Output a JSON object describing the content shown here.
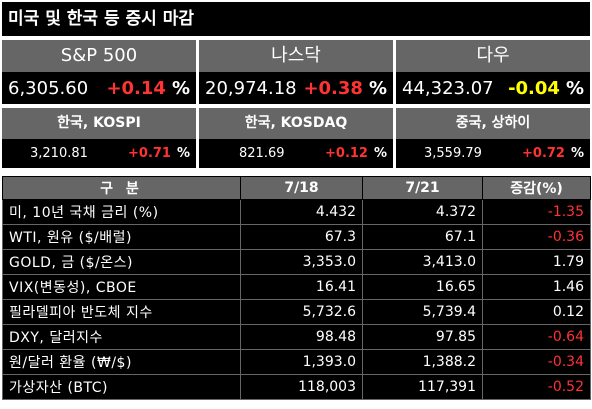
{
  "title": "미국 및 한국 등 증시 마감",
  "us_indices": [
    {
      "name": "S&P 500",
      "value": "6,305.60",
      "change": "+0.14",
      "pct": "%",
      "direction": "up"
    },
    {
      "name": "나스닥",
      "value": "20,974.18",
      "change": "+0.38",
      "pct": "%",
      "direction": "up"
    },
    {
      "name": "다우",
      "value": "44,323.07",
      "change": "-0.04",
      "pct": "%",
      "direction": "down"
    }
  ],
  "asia_indices": [
    {
      "name": "한국, KOSPI",
      "value": "3,210.81",
      "change": "+0.71",
      "pct": "%"
    },
    {
      "name": "한국, KOSDAQ",
      "value": "821.69",
      "change": "+0.12",
      "pct": "%"
    },
    {
      "name": "중국, 상하이",
      "value": "3,559.79",
      "change": "+0.72",
      "pct": "%"
    }
  ],
  "table": {
    "headers": [
      "구 분",
      "7/18",
      "7/21",
      "증감(%)"
    ],
    "rows": [
      {
        "label": "미, 10년 국채 금리 (%)",
        "d1": "4.432",
        "d2": "4.372",
        "chg": "-1.35"
      },
      {
        "label": "WTI, 원유 ($/배럴)",
        "d1": "67.3",
        "d2": "67.1",
        "chg": "-0.36"
      },
      {
        "label": "GOLD, 금 ($/온스)",
        "d1": "3,353.0",
        "d2": "3,413.0",
        "chg": "1.79"
      },
      {
        "label": "VIX(변동성), CBOE",
        "d1": "16.41",
        "d2": "16.65",
        "chg": "1.46"
      },
      {
        "label": "필라델피아 반도체 지수",
        "d1": "5,732.6",
        "d2": "5,739.4",
        "chg": "0.12"
      },
      {
        "label": "DXY, 달러지수",
        "d1": "98.48",
        "d2": "97.85",
        "chg": "-0.64"
      },
      {
        "label": "원/달러 환율 (₩/$)",
        "d1": "1,393.0",
        "d2": "1,388.2",
        "chg": "-0.34"
      },
      {
        "label": "가상자산 (BTC)",
        "d1": "118,003",
        "d2": "117,391",
        "chg": "-0.52"
      }
    ]
  },
  "colors": {
    "up": "#ff3333",
    "down_us": "#ffff00",
    "neg": "#ff3333",
    "header_bg": "#666666",
    "cell_bg": "#000000"
  }
}
